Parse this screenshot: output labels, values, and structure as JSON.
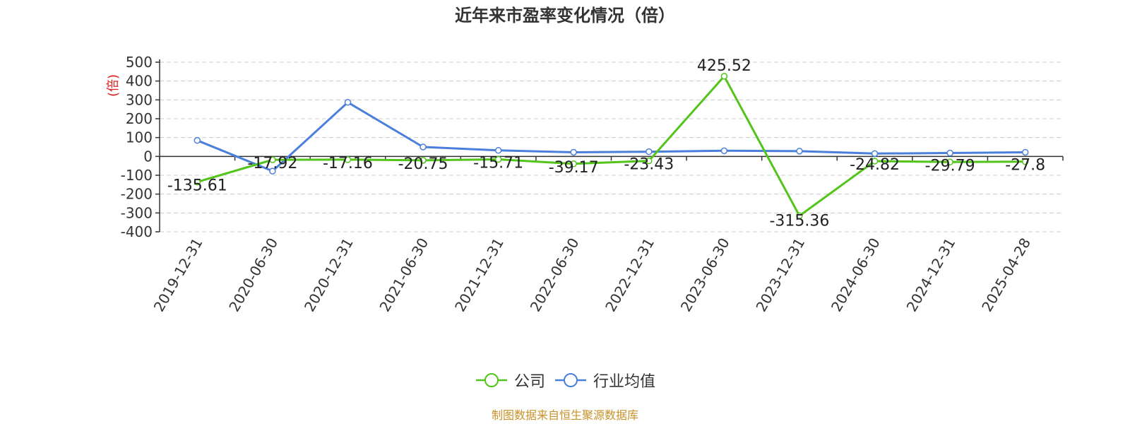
{
  "chart_data": {
    "type": "line",
    "title": "近年来市盈率变化情况（倍）",
    "ylabel": "(倍)",
    "ylim": [
      -400,
      500
    ],
    "yticks": [
      500,
      400,
      300,
      200,
      100,
      0,
      -100,
      -200,
      -300,
      -400
    ],
    "categories": [
      "2019-12-31",
      "2020-06-30",
      "2020-12-31",
      "2021-06-30",
      "2021-12-31",
      "2022-06-30",
      "2022-12-31",
      "2023-06-30",
      "2023-12-31",
      "2024-06-30",
      "2024-12-31",
      "2025-04-28"
    ],
    "grid": true,
    "legend_position": "bottom-center",
    "series": [
      {
        "name": "公司",
        "color": "#52c41a",
        "values": [
          -135.61,
          -17.92,
          -17.16,
          -20.75,
          -15.71,
          -39.17,
          -23.43,
          425.52,
          -315.36,
          -24.82,
          -29.79,
          -27.8
        ],
        "labels": [
          "-135.61",
          "-17.92",
          "-17.16",
          "-20.75",
          "-15.71",
          "-39.17",
          "-23.43",
          "425.52",
          "-315.36",
          "-24.82",
          "-29.79",
          "-27.8"
        ]
      },
      {
        "name": "行业均值",
        "color": "#4a7fdc",
        "values": [
          85,
          -78,
          287,
          50,
          32,
          22,
          25,
          30,
          28,
          15,
          18,
          22
        ]
      }
    ]
  },
  "source": "制图数据来自恒生聚源数据库"
}
